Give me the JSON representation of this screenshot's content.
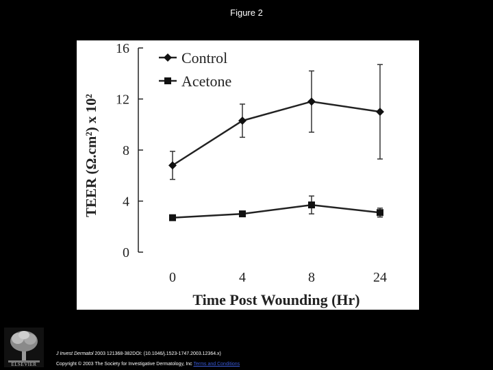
{
  "figure_title": "Figure 2",
  "chart_data": {
    "type": "line",
    "categories": [
      "0",
      "4",
      "8",
      "24"
    ],
    "series": [
      {
        "name": "Control",
        "values": [
          6.8,
          10.3,
          11.8,
          11.0
        ],
        "errors": [
          1.1,
          1.3,
          2.4,
          3.7
        ],
        "marker": "diamond"
      },
      {
        "name": "Acetone",
        "values": [
          2.7,
          3.0,
          3.7,
          3.1
        ],
        "errors": [
          0.15,
          0.15,
          0.7,
          0.35
        ],
        "marker": "square"
      }
    ],
    "xlabel": "Time Post Wounding (Hr)",
    "ylabel": "TEER (Ω.cm²) x 10²",
    "ylim": [
      0,
      16
    ],
    "yticks": [
      "0",
      "4",
      "8",
      "12",
      "16"
    ],
    "legend_position": "top-left",
    "grid": false
  },
  "footer": {
    "journal": "J Invest Dermatol",
    "citation_rest": " 2003 121368-382DOI: (10.1046/j.1523-1747.2003.12364.x)",
    "copyright": "Copyright © 2003 The Society for Investigative Dermatology, Inc ",
    "terms_link": "Terms and Conditions",
    "logo_text": "ELSEVIER"
  }
}
